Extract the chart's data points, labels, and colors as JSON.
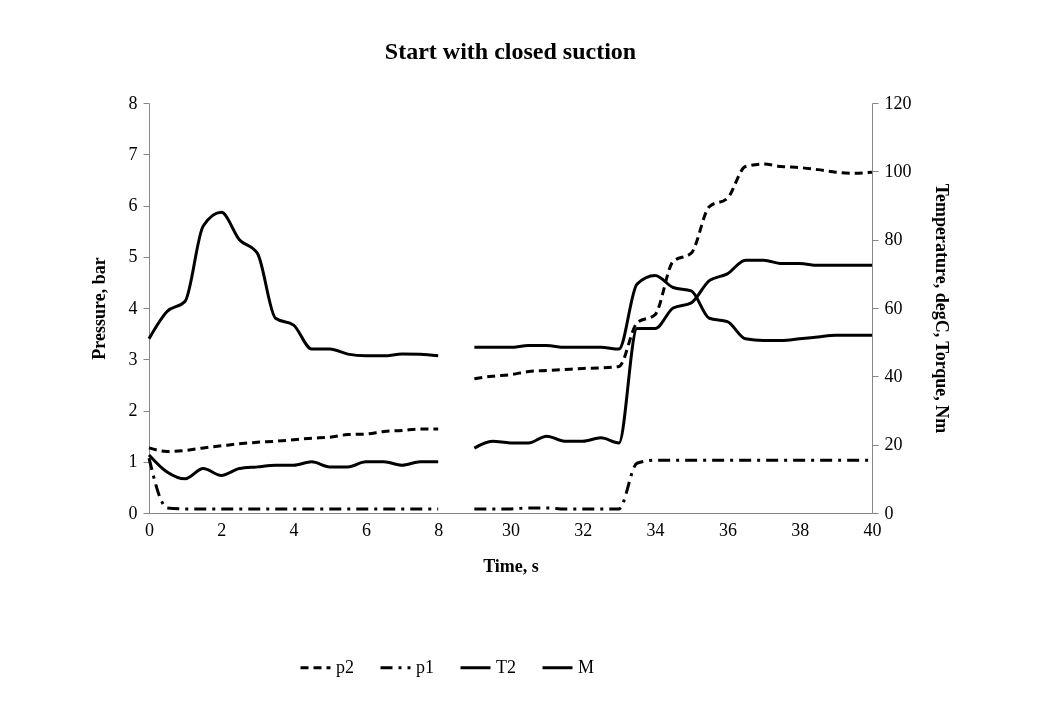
{
  "chart_data": {
    "type": "line",
    "title": "Start with closed suction",
    "xlabel": "Time, s",
    "ylabel": "Pressure, bar",
    "y2label": "Temperature, degC, Torque, Nm",
    "categories": [
      "0",
      null,
      null,
      null,
      "2",
      null,
      null,
      null,
      "4",
      null,
      null,
      null,
      "6",
      null,
      null,
      null,
      "8",
      null,
      null,
      null,
      "30",
      null,
      null,
      null,
      "32",
      null,
      null,
      null,
      "34",
      null,
      null,
      null,
      "36",
      null,
      null,
      null,
      "38",
      null,
      null,
      null,
      "40"
    ],
    "series": [
      {
        "name": "p2",
        "color": "#000000",
        "line_style": "dashed",
        "values": [
          1.27,
          1.2,
          1.22,
          1.27,
          1.31,
          1.35,
          1.38,
          1.4,
          1.43,
          1.46,
          1.48,
          1.53,
          1.54,
          1.59,
          1.61,
          1.64,
          1.64,
          null,
          2.62,
          2.67,
          2.7,
          2.76,
          2.78,
          2.8,
          2.82,
          2.83,
          2.86,
          3.71,
          3.87,
          4.91,
          5.07,
          5.98,
          6.14,
          6.76,
          6.81,
          6.76,
          6.74,
          6.7,
          6.65,
          6.63,
          6.65
        ]
      },
      {
        "name": "p1",
        "color": "#000000",
        "line_style": "dashdot",
        "values": [
          1.07,
          0.1,
          0.08,
          0.08,
          0.08,
          0.08,
          0.08,
          0.08,
          0.08,
          0.08,
          0.08,
          0.08,
          0.08,
          0.08,
          0.08,
          0.08,
          0.08,
          null,
          0.08,
          0.08,
          0.08,
          0.1,
          0.1,
          0.08,
          0.08,
          0.08,
          0.08,
          0.97,
          1.03,
          1.03,
          1.03,
          1.03,
          1.03,
          1.03,
          1.03,
          1.03,
          1.03,
          1.03,
          1.03,
          1.03,
          1.03
        ]
      },
      {
        "name": "T2",
        "color": "#000000",
        "line_style": "solid",
        "axis": "y2",
        "values": [
          17,
          12,
          10,
          13,
          11,
          13,
          13.5,
          14,
          14,
          15,
          13.5,
          13.5,
          15,
          15,
          14,
          15,
          15,
          null,
          19,
          21,
          20.5,
          20.5,
          22.5,
          21,
          21,
          22,
          20.5,
          54,
          54,
          60,
          61.5,
          68,
          70,
          74,
          74,
          73,
          73,
          72.5,
          72.5,
          72.5,
          72.5
        ]
      },
      {
        "name": "M",
        "color": "#000000",
        "line_style": "solid",
        "axis": "y2",
        "values": [
          51,
          59,
          62,
          84,
          88,
          80,
          76,
          57,
          55,
          48,
          48,
          46.5,
          46,
          46,
          46.5,
          46.5,
          46,
          null,
          48.5,
          48.5,
          48.5,
          49,
          49,
          48.5,
          48.5,
          48.5,
          48,
          67,
          69.5,
          66,
          65,
          57,
          56,
          51,
          50.5,
          50.5,
          51,
          51.5,
          52,
          52,
          52
        ]
      }
    ],
    "ylim": [
      0,
      8
    ],
    "yticks": [
      0,
      1,
      2,
      3,
      4,
      5,
      6,
      7,
      8
    ],
    "y2lim": [
      0,
      120
    ],
    "y2ticks": [
      0,
      20,
      40,
      60,
      80,
      100,
      120
    ],
    "grid": false,
    "legend": "bottom",
    "marker": "none"
  }
}
